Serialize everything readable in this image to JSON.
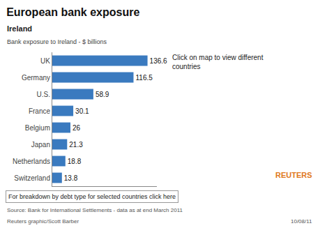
{
  "chart_data": {
    "type": "bar",
    "orientation": "horizontal",
    "title": "European bank exposure",
    "annotations": [
      "Ireland",
      "Bank exposure to Ireland - $ billions",
      "Click on map to view different\ncountries",
      "For breakdown by debt type for selected countries click here",
      "Source: Bank for International Settlements - data as at end March 2011",
      "Reuters graphic/Scott Barber",
      "10/08/11",
      "REUTERS"
    ],
    "categories": [
      "UK",
      "Germany",
      "U.S.",
      "France",
      "Belgium",
      "Japan",
      "Netherlands",
      "Switzerland"
    ],
    "values": [
      136.6,
      116.5,
      58.9,
      30.1,
      26.0,
      21.3,
      18.8,
      13.8
    ],
    "color": "#3a7abf",
    "xlim": [
      0,
      150
    ],
    "xticks": [],
    "tick_labels": "y",
    "data_labels": true,
    "grid": false
  }
}
